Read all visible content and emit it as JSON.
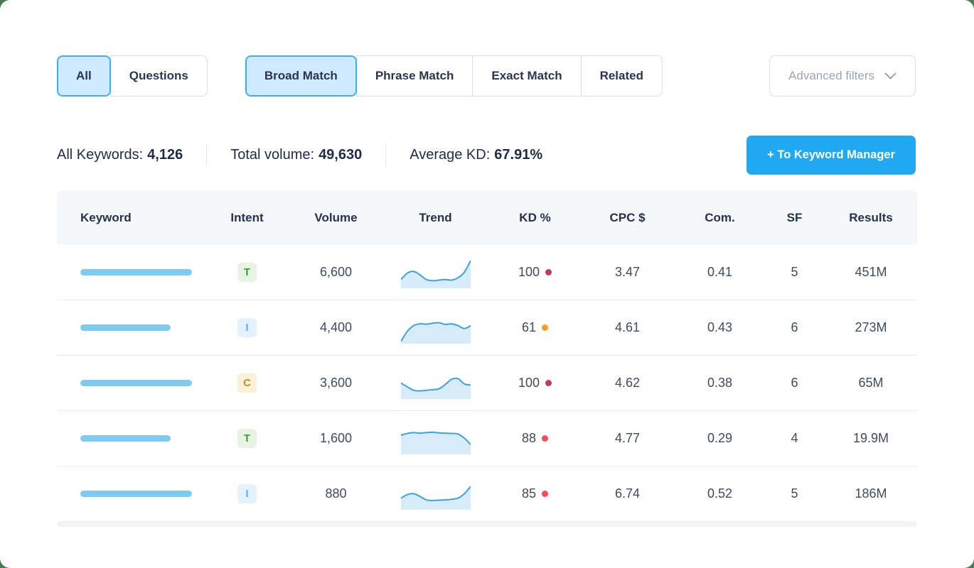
{
  "colors": {
    "accent_blue": "#20a9f2",
    "selected_fill": "#cfeafc",
    "selected_border": "#35b2f2",
    "keyword_bar": "#7dcaf3",
    "spark_line": "#3aa4de",
    "spark_fill": "#d7ebf9",
    "kd_very_hard": "#c43a5e",
    "kd_hard": "#fb4a56",
    "kd_difficult": "#ff9a1f",
    "page_background": "#4d7854"
  },
  "filters": {
    "scope_group": [
      {
        "label": "All",
        "selected": true
      },
      {
        "label": "Questions",
        "selected": false
      }
    ],
    "match_group": [
      {
        "label": "Broad Match",
        "selected": true
      },
      {
        "label": "Phrase Match",
        "selected": false
      },
      {
        "label": "Exact Match",
        "selected": false
      },
      {
        "label": "Related",
        "selected": false
      }
    ],
    "advanced_label": "Advanced filters"
  },
  "summary": {
    "all_keywords_label": "All Keywords:",
    "all_keywords_value": "4,126",
    "total_volume_label": "Total volume:",
    "total_volume_value": "49,630",
    "average_kd_label": "Average KD:",
    "average_kd_value": "67.91%",
    "cta_label": "+ To Keyword Manager"
  },
  "table": {
    "columns": [
      "Keyword",
      "Intent",
      "Volume",
      "Trend",
      "KD %",
      "CPC $",
      "Com.",
      "SF",
      "Results"
    ],
    "rows": [
      {
        "keyword_bar_width": 157,
        "intent": "T",
        "intent_type": "transactional",
        "volume": "6,600",
        "trend": [
          30,
          52,
          58,
          46,
          30,
          26,
          28,
          30,
          28,
          36,
          55,
          95
        ],
        "kd": "100",
        "kd_color": "#c43a5e",
        "cpc": "3.47",
        "com": "0.41",
        "sf": "5",
        "results": "451M"
      },
      {
        "keyword_bar_width": 127,
        "intent": "I",
        "intent_type": "informational",
        "volume": "4,400",
        "trend": [
          8,
          42,
          62,
          68,
          67,
          70,
          72,
          66,
          68,
          62,
          52,
          62
        ],
        "kd": "61",
        "kd_color": "#ff9a1f",
        "cpc": "4.61",
        "com": "0.43",
        "sf": "6",
        "results": "273M"
      },
      {
        "keyword_bar_width": 157,
        "intent": "C",
        "intent_type": "commercial",
        "volume": "3,600",
        "trend": [
          55,
          42,
          30,
          28,
          30,
          32,
          35,
          50,
          68,
          70,
          52,
          48
        ],
        "kd": "100",
        "kd_color": "#c43a5e",
        "cpc": "4.62",
        "com": "0.38",
        "sf": "6",
        "results": "65M"
      },
      {
        "keyword_bar_width": 127,
        "intent": "T",
        "intent_type": "transactional",
        "volume": "1,600",
        "trend": [
          66,
          72,
          75,
          73,
          75,
          76,
          74,
          73,
          72,
          70,
          56,
          34
        ],
        "kd": "88",
        "kd_color": "#fb4a56",
        "cpc": "4.77",
        "com": "0.29",
        "sf": "4",
        "results": "19.9M"
      },
      {
        "keyword_bar_width": 157,
        "intent": "I",
        "intent_type": "informational",
        "volume": "880",
        "trend": [
          40,
          52,
          55,
          46,
          34,
          32,
          33,
          34,
          36,
          40,
          55,
          80
        ],
        "kd": "85",
        "kd_color": "#fb4a56",
        "cpc": "6.74",
        "com": "0.52",
        "sf": "5",
        "results": "186M"
      }
    ]
  }
}
